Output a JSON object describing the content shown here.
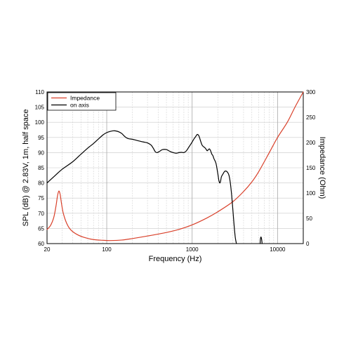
{
  "chart_data": {
    "type": "line",
    "xlabel": "Frequency (Hz)",
    "ylabel": "SPL (dB) @ 2.83V, 1m, half space",
    "y2label": "Impedance (Ohm)",
    "x_scale": "log",
    "xlim": [
      20,
      20000
    ],
    "ylim": [
      60,
      110
    ],
    "y2lim": [
      0,
      300
    ],
    "x_tick_labels": [
      {
        "value": 20,
        "label": "20"
      },
      {
        "value": 100,
        "label": "100"
      },
      {
        "value": 1000,
        "label": "1000"
      },
      {
        "value": 10000,
        "label": "10000"
      }
    ],
    "y_ticks": [
      60,
      65,
      70,
      75,
      80,
      85,
      90,
      95,
      100,
      105,
      110
    ],
    "y2_ticks": [
      0,
      50,
      100,
      150,
      200,
      250,
      300
    ],
    "grid": true,
    "legend_position": "top-left",
    "series": [
      {
        "name": "Impedance",
        "axis": "right",
        "color": "#d9412b",
        "points": [
          [
            20,
            28
          ],
          [
            22,
            36
          ],
          [
            24,
            52
          ],
          [
            25.5,
            75
          ],
          [
            26.5,
            94
          ],
          [
            27.5,
            104
          ],
          [
            28.5,
            97
          ],
          [
            29.5,
            80
          ],
          [
            31,
            60
          ],
          [
            34,
            40
          ],
          [
            38,
            27
          ],
          [
            45,
            18
          ],
          [
            55,
            12
          ],
          [
            70,
            8
          ],
          [
            90,
            6.5
          ],
          [
            110,
            6
          ],
          [
            150,
            7
          ],
          [
            200,
            10
          ],
          [
            300,
            15
          ],
          [
            500,
            22
          ],
          [
            700,
            28
          ],
          [
            1000,
            37
          ],
          [
            1500,
            51
          ],
          [
            2000,
            63
          ],
          [
            3000,
            83
          ],
          [
            4000,
            103
          ],
          [
            5000,
            122
          ],
          [
            6000,
            142
          ],
          [
            8000,
            180
          ],
          [
            10000,
            210
          ],
          [
            13000,
            240
          ],
          [
            16000,
            270
          ],
          [
            20000,
            300
          ]
        ]
      },
      {
        "name": "on axis",
        "axis": "left",
        "color": "#000000",
        "segments": [
          [
            [
              20,
              80
            ],
            [
              25,
              82.5
            ],
            [
              30,
              84.5
            ],
            [
              40,
              87
            ],
            [
              50,
              89.5
            ],
            [
              60,
              91.5
            ],
            [
              70,
              93
            ],
            [
              80,
              94.5
            ],
            [
              90,
              95.8
            ],
            [
              100,
              96.6
            ],
            [
              110,
              97
            ],
            [
              120,
              97.2
            ],
            [
              130,
              97.1
            ],
            [
              140,
              96.8
            ],
            [
              150,
              96.3
            ],
            [
              160,
              95.5
            ],
            [
              170,
              94.9
            ],
            [
              180,
              94.6
            ],
            [
              200,
              94.4
            ],
            [
              220,
              94.1
            ],
            [
              250,
              93.7
            ],
            [
              280,
              93.4
            ],
            [
              300,
              93.2
            ],
            [
              330,
              92.5
            ],
            [
              350,
              91.5
            ],
            [
              370,
              90.3
            ],
            [
              390,
              90
            ],
            [
              420,
              90.5
            ],
            [
              450,
              91
            ],
            [
              500,
              91
            ],
            [
              550,
              90.4
            ],
            [
              600,
              90
            ],
            [
              650,
              89.8
            ],
            [
              700,
              90
            ],
            [
              750,
              90.1
            ],
            [
              800,
              90
            ],
            [
              850,
              90.5
            ],
            [
              900,
              91.5
            ],
            [
              950,
              92.5
            ],
            [
              1000,
              93.5
            ],
            [
              1050,
              94.5
            ],
            [
              1100,
              95.3
            ],
            [
              1150,
              96
            ],
            [
              1200,
              95.5
            ],
            [
              1250,
              94
            ],
            [
              1300,
              92.6
            ],
            [
              1350,
              92
            ],
            [
              1400,
              91.7
            ],
            [
              1450,
              91.2
            ],
            [
              1500,
              90.6
            ],
            [
              1550,
              91
            ],
            [
              1600,
              91.2
            ],
            [
              1650,
              90.5
            ],
            [
              1700,
              89.5
            ],
            [
              1750,
              89
            ],
            [
              1800,
              88
            ],
            [
              1900,
              86.5
            ],
            [
              2000,
              83
            ],
            [
              2050,
              81
            ],
            [
              2100,
              80
            ],
            [
              2150,
              80.5
            ],
            [
              2200,
              82
            ],
            [
              2300,
              83
            ],
            [
              2400,
              83.8
            ],
            [
              2500,
              83.9
            ],
            [
              2600,
              83.5
            ],
            [
              2700,
              82.5
            ],
            [
              2800,
              80
            ],
            [
              2900,
              76
            ],
            [
              3000,
              71
            ],
            [
              3100,
              66
            ],
            [
              3200,
              62
            ],
            [
              3300,
              60
            ]
          ],
          [
            [
              6250,
              60
            ],
            [
              6300,
              61.5
            ],
            [
              6400,
              62.2
            ],
            [
              6500,
              61.5
            ],
            [
              6600,
              60
            ]
          ]
        ]
      }
    ]
  }
}
